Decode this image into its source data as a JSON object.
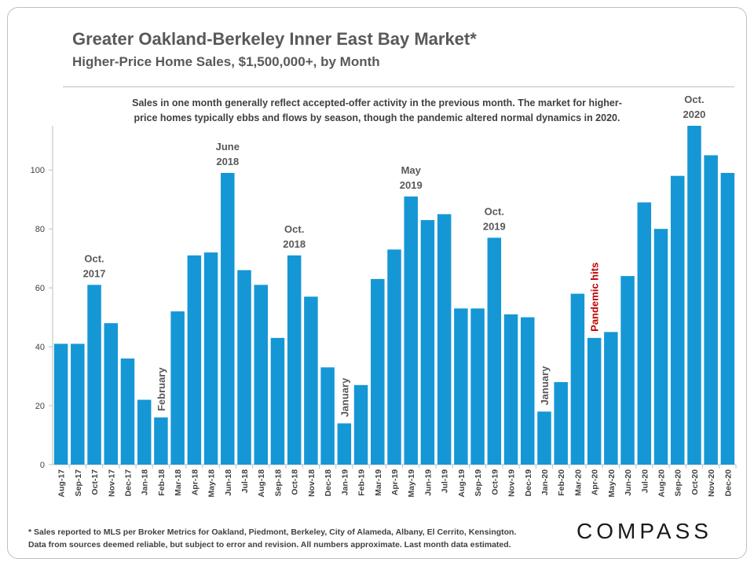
{
  "title": "Greater Oakland-Berkeley Inner East Bay Market*",
  "subtitle": "Higher-Price  Home Sales, $1,500,000+, by Month",
  "note_line1": "Sales in one month generally reflect accepted-offer activity in the previous month. The market for higher-",
  "note_line2": "price homes typically ebbs and flows by season, though the pandemic altered normal dynamics in 2020.",
  "footnote_line1": "* Sales reported to MLS per Broker Metrics for Oakland, Piedmont, Berkeley, City of Alameda, Albany, El Cerrito, Kensington.",
  "footnote_line2": "Data from sources deemed reliable, but subject to error and revision. All numbers approximate. Last month data estimated.",
  "logo": "COMPASS",
  "colors": {
    "bar": "#1597d5",
    "text": "#595959",
    "pandemic": "#c00000"
  },
  "chart_data": {
    "type": "bar",
    "categories": [
      "Aug-17",
      "Sep-17",
      "Oct-17",
      "Nov-17",
      "Dec-17",
      "Jan-18",
      "Feb-18",
      "Mar-18",
      "Apr-18",
      "May-18",
      "Jun-18",
      "Jul-18",
      "Aug-18",
      "Sep-18",
      "Oct-18",
      "Nov-18",
      "Dec-18",
      "Jan-19",
      "Feb-19",
      "Mar-19",
      "Apr-19",
      "May-19",
      "Jun-19",
      "Jul-19",
      "Aug-19",
      "Sep-19",
      "Oct-19",
      "Nov-19",
      "Dec-19",
      "Jan-20",
      "Feb-20",
      "Mar-20",
      "Apr-20",
      "May-20",
      "Jun-20",
      "Jul-20",
      "Aug-20",
      "Sep-20",
      "Oct-20",
      "Nov-20",
      "Dec-20"
    ],
    "values": [
      41,
      41,
      61,
      48,
      36,
      22,
      16,
      52,
      71,
      72,
      99,
      66,
      61,
      43,
      71,
      57,
      33,
      14,
      27,
      63,
      73,
      91,
      83,
      85,
      53,
      53,
      77,
      51,
      50,
      18,
      28,
      58,
      43,
      45,
      64,
      89,
      80,
      98,
      115,
      105,
      99
    ],
    "yticks": [
      0,
      20,
      40,
      60,
      80,
      100
    ],
    "ylim": [
      0,
      115
    ],
    "grid": false,
    "annotations": [
      {
        "category": "Oct-17",
        "lines": [
          "Oct.",
          "2017"
        ],
        "style": "horizontal"
      },
      {
        "category": "Jun-18",
        "lines": [
          "June",
          "2018"
        ],
        "style": "horizontal"
      },
      {
        "category": "Oct-18",
        "lines": [
          "Oct.",
          "2018"
        ],
        "style": "horizontal"
      },
      {
        "category": "May-19",
        "lines": [
          "May",
          "2019"
        ],
        "style": "horizontal"
      },
      {
        "category": "Oct-19",
        "lines": [
          "Oct.",
          "2019"
        ],
        "style": "horizontal"
      },
      {
        "category": "Oct-20",
        "lines": [
          "Oct.",
          "2020"
        ],
        "style": "horizontal"
      },
      {
        "category": "Feb-18",
        "lines": [
          "February"
        ],
        "style": "vertical"
      },
      {
        "category": "Jan-19",
        "lines": [
          "January"
        ],
        "style": "vertical"
      },
      {
        "category": "Jan-20",
        "lines": [
          "January"
        ],
        "style": "vertical"
      },
      {
        "category": "Apr-20",
        "lines": [
          "Pandemic hits"
        ],
        "style": "vertical",
        "highlight": true
      }
    ]
  }
}
